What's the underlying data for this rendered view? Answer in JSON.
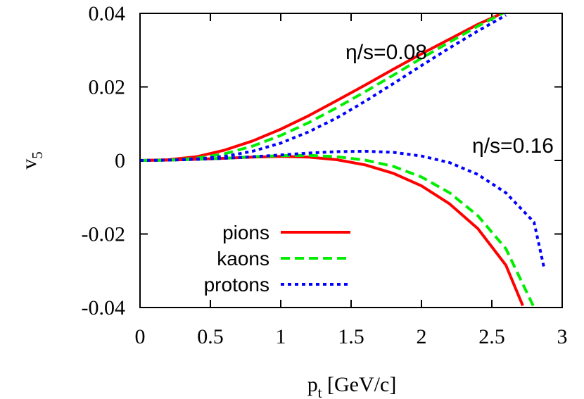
{
  "chart_data": {
    "type": "line",
    "xlabel": "p",
    "xlabel_sub": "t",
    "xlabel_suffix": " [GeV/c]",
    "ylabel": "v",
    "ylabel_sub": "5",
    "xlim": [
      0,
      3
    ],
    "ylim": [
      -0.04,
      0.04
    ],
    "xticks": [
      0,
      0.5,
      1,
      1.5,
      2,
      2.5,
      3
    ],
    "xtick_labels": [
      "0",
      "0.5",
      "1",
      "1.5",
      "2",
      "2.5",
      "3"
    ],
    "yticks": [
      -0.04,
      -0.02,
      0,
      0.02,
      0.04
    ],
    "ytick_labels": [
      "-0.04",
      "-0.02",
      "0",
      "0.02",
      "0.04"
    ],
    "grid": false,
    "legend_position": "bottom-left",
    "annotations": [
      {
        "text": "η/s=0.08",
        "x": 1.75,
        "y": 0.0295
      },
      {
        "text": "η/s=0.16",
        "x": 2.65,
        "y": 0.004
      }
    ],
    "legend": [
      {
        "name": "pions",
        "color": "#ff0000",
        "style": "solid"
      },
      {
        "name": "kaons",
        "color": "#00ee00",
        "style": "dashed"
      },
      {
        "name": "protons",
        "color": "#0000ff",
        "style": "dotted"
      }
    ],
    "series": [
      {
        "name": "pions",
        "group": "η/s=0.08",
        "color": "#ff0000",
        "style": "solid",
        "x": [
          0,
          0.2,
          0.4,
          0.6,
          0.8,
          1.0,
          1.2,
          1.4,
          1.6,
          1.8,
          2.0,
          2.2,
          2.4,
          2.6
        ],
        "y": [
          0,
          0.0002,
          0.001,
          0.0028,
          0.0053,
          0.0085,
          0.0122,
          0.0163,
          0.0205,
          0.0248,
          0.029,
          0.033,
          0.037,
          0.0405
        ]
      },
      {
        "name": "kaons",
        "group": "η/s=0.08",
        "color": "#00ee00",
        "style": "dashed",
        "x": [
          0,
          0.2,
          0.4,
          0.6,
          0.8,
          1.0,
          1.2,
          1.4,
          1.6,
          1.8,
          2.0,
          2.2,
          2.4,
          2.6
        ],
        "y": [
          0,
          0.0001,
          0.0006,
          0.0018,
          0.0039,
          0.0068,
          0.0103,
          0.0144,
          0.0187,
          0.0232,
          0.0278,
          0.0322,
          0.0365,
          0.0405
        ]
      },
      {
        "name": "protons",
        "group": "η/s=0.08",
        "color": "#0000ff",
        "style": "dotted",
        "x": [
          0,
          0.2,
          0.4,
          0.6,
          0.8,
          1.0,
          1.2,
          1.4,
          1.6,
          1.8,
          2.0,
          2.2,
          2.4,
          2.6
        ],
        "y": [
          0,
          0.0001,
          0.0004,
          0.0011,
          0.0025,
          0.0047,
          0.0078,
          0.0116,
          0.0161,
          0.0209,
          0.0258,
          0.0306,
          0.0352,
          0.0395
        ]
      },
      {
        "name": "pions",
        "group": "η/s=0.16",
        "color": "#ff0000",
        "style": "solid",
        "x": [
          0,
          0.2,
          0.4,
          0.6,
          0.8,
          1.0,
          1.2,
          1.4,
          1.6,
          1.8,
          2.0,
          2.2,
          2.4,
          2.6,
          2.72
        ],
        "y": [
          0,
          0.0001,
          0.0003,
          0.0006,
          0.0009,
          0.0011,
          0.0009,
          0.0002,
          -0.0012,
          -0.0035,
          -0.0069,
          -0.0118,
          -0.0185,
          -0.0285,
          -0.0395
        ]
      },
      {
        "name": "kaons",
        "group": "η/s=0.16",
        "color": "#00ee00",
        "style": "dashed",
        "x": [
          0,
          0.2,
          0.4,
          0.6,
          0.8,
          1.0,
          1.2,
          1.4,
          1.6,
          1.8,
          2.0,
          2.2,
          2.4,
          2.6,
          2.8
        ],
        "y": [
          0,
          0.0001,
          0.0003,
          0.0006,
          0.001,
          0.0013,
          0.0014,
          0.001,
          0.0001,
          -0.0016,
          -0.0045,
          -0.0088,
          -0.015,
          -0.024,
          -0.04
        ]
      },
      {
        "name": "protons",
        "group": "η/s=0.16",
        "color": "#0000ff",
        "style": "dotted",
        "x": [
          0,
          0.2,
          0.4,
          0.6,
          0.8,
          1.0,
          1.2,
          1.4,
          1.6,
          1.8,
          2.0,
          2.2,
          2.4,
          2.6,
          2.8,
          2.87
        ],
        "y": [
          0,
          0.0001,
          0.0003,
          0.0006,
          0.001,
          0.0015,
          0.002,
          0.0024,
          0.0025,
          0.0022,
          0.0012,
          -0.0006,
          -0.0038,
          -0.0088,
          -0.0168,
          -0.029
        ]
      }
    ]
  }
}
